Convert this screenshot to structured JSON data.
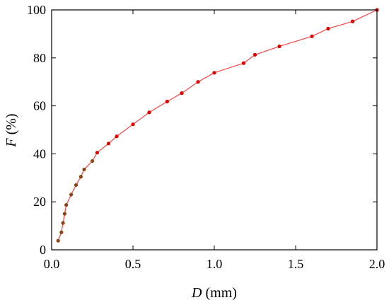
{
  "chart_data": {
    "type": "line",
    "xlabel": {
      "var": "D",
      "unit": " (mm)"
    },
    "ylabel": {
      "var": "F",
      "unit": " (%)"
    },
    "xlim": [
      0,
      2.0
    ],
    "ylim": [
      0,
      100
    ],
    "xticks": [
      "0.0",
      "0.5",
      "1.0",
      "1.5",
      "2.0"
    ],
    "yticks": [
      "0",
      "20",
      "40",
      "60",
      "80",
      "100"
    ],
    "xtick_values": [
      0,
      0.5,
      1.0,
      1.5,
      2.0
    ],
    "ytick_values": [
      0,
      20,
      40,
      60,
      80,
      100
    ],
    "grid": false,
    "series": [
      {
        "line_color": "#ff4040",
        "points": [
          {
            "x": 0.04,
            "y": 3.8,
            "color": "#8b4513"
          },
          {
            "x": 0.06,
            "y": 7.3,
            "color": "#8b4513"
          },
          {
            "x": 0.07,
            "y": 11.2,
            "color": "#8b4513"
          },
          {
            "x": 0.08,
            "y": 15.0,
            "color": "#8b4513"
          },
          {
            "x": 0.09,
            "y": 18.7,
            "color": "#8b4513"
          },
          {
            "x": 0.12,
            "y": 23.0,
            "color": "#8b4513"
          },
          {
            "x": 0.15,
            "y": 27.0,
            "color": "#8b4513"
          },
          {
            "x": 0.18,
            "y": 30.5,
            "color": "#8b4513"
          },
          {
            "x": 0.2,
            "y": 33.5,
            "color": "#8b4513"
          },
          {
            "x": 0.25,
            "y": 37.0,
            "color": "#8b4513"
          },
          {
            "x": 0.28,
            "y": 40.5,
            "color": "#e00000"
          },
          {
            "x": 0.35,
            "y": 44.3,
            "color": "#e00000"
          },
          {
            "x": 0.4,
            "y": 47.3,
            "color": "#e00000"
          },
          {
            "x": 0.5,
            "y": 52.3,
            "color": "#e00000"
          },
          {
            "x": 0.6,
            "y": 57.3,
            "color": "#e00000"
          },
          {
            "x": 0.71,
            "y": 61.8,
            "color": "#e00000"
          },
          {
            "x": 0.8,
            "y": 65.3,
            "color": "#e00000"
          },
          {
            "x": 0.9,
            "y": 70.0,
            "color": "#e00000"
          },
          {
            "x": 1.0,
            "y": 73.8,
            "color": "#e00000"
          },
          {
            "x": 1.18,
            "y": 77.8,
            "color": "#e00000"
          },
          {
            "x": 1.25,
            "y": 81.3,
            "color": "#e00000"
          },
          {
            "x": 1.4,
            "y": 84.8,
            "color": "#e00000"
          },
          {
            "x": 1.6,
            "y": 89.0,
            "color": "#e00000"
          },
          {
            "x": 1.7,
            "y": 92.2,
            "color": "#e00000"
          },
          {
            "x": 1.85,
            "y": 95.2,
            "color": "#e00000"
          },
          {
            "x": 2.0,
            "y": 100.0,
            "color": "#e00000"
          }
        ]
      }
    ]
  }
}
